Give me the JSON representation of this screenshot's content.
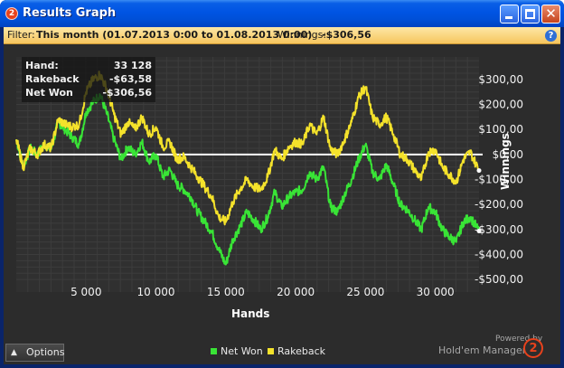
{
  "window": {
    "title": "Results Graph",
    "app_badge": "2",
    "controls": {
      "minimize": "minimize",
      "maximize": "maximize",
      "close": "✕"
    }
  },
  "filter": {
    "label": "Filter:",
    "value": "This month (01.07.2013 0:00 to 01.08.2013 0:00)",
    "winnings_label": "Winnings:",
    "winnings_value": "-$306,56",
    "help_glyph": "?"
  },
  "tooltip": {
    "rows": [
      {
        "key": "Hand:",
        "value": "33 128"
      },
      {
        "key": "Rakeback",
        "value": "-$63,58"
      },
      {
        "key": "Net Won",
        "value": "-$306,56"
      }
    ]
  },
  "chart_data": {
    "type": "line",
    "xlabel": "Hands",
    "ylabel": "Winnings",
    "xlim": [
      0,
      33128
    ],
    "ylim": [
      -550,
      390
    ],
    "x_ticks": [
      5000,
      10000,
      15000,
      20000,
      25000,
      30000
    ],
    "x_tick_labels": [
      "5 000",
      "10 000",
      "15 000",
      "20 000",
      "25 000",
      "30 000"
    ],
    "y_ticks": [
      300,
      200,
      100,
      0,
      -100,
      -200,
      -300,
      -400,
      -500
    ],
    "y_tick_labels": [
      "$300,00",
      "$200,00",
      "$100,00",
      "$0,00",
      "-$100,00",
      "-$200,00",
      "-$300,00",
      "-$400,00",
      "-$500,00"
    ],
    "grid": true,
    "legend_position": "bottom-center",
    "series": [
      {
        "name": "Net Won",
        "color": "#39e436",
        "x": [
          0,
          500,
          1000,
          1500,
          2000,
          2500,
          3000,
          3500,
          4000,
          4500,
          5000,
          5500,
          6000,
          6500,
          7000,
          7500,
          8000,
          8500,
          9000,
          9500,
          10000,
          10500,
          11000,
          11500,
          12000,
          12500,
          13000,
          13500,
          14000,
          14500,
          15000,
          15500,
          16000,
          16500,
          17000,
          17500,
          18000,
          18500,
          19000,
          19500,
          20000,
          20500,
          21000,
          21500,
          22000,
          22500,
          23000,
          23500,
          24000,
          24500,
          25000,
          25500,
          26000,
          26500,
          27000,
          27500,
          28000,
          28500,
          29000,
          29500,
          30000,
          30500,
          31000,
          31500,
          32000,
          32500,
          33128
        ],
        "values": [
          60,
          -50,
          25,
          0,
          40,
          20,
          130,
          100,
          70,
          40,
          170,
          210,
          240,
          160,
          60,
          -20,
          30,
          0,
          50,
          -30,
          0,
          -90,
          -60,
          -120,
          -140,
          -170,
          -230,
          -270,
          -310,
          -380,
          -440,
          -340,
          -290,
          -230,
          -260,
          -300,
          -250,
          -150,
          -210,
          -170,
          -150,
          -140,
          -70,
          -100,
          -50,
          -210,
          -230,
          -160,
          -100,
          -20,
          40,
          -70,
          -100,
          -40,
          -120,
          -200,
          -220,
          -260,
          -300,
          -210,
          -230,
          -300,
          -330,
          -350,
          -270,
          -250,
          -306
        ]
      },
      {
        "name": "Rakeback",
        "color": "#f4e22b",
        "x": [
          0,
          500,
          1000,
          1500,
          2000,
          2500,
          3000,
          3500,
          4000,
          4500,
          5000,
          5500,
          6000,
          6500,
          7000,
          7500,
          8000,
          8500,
          9000,
          9500,
          10000,
          10500,
          11000,
          11500,
          12000,
          12500,
          13000,
          13500,
          14000,
          14500,
          15000,
          15500,
          16000,
          16500,
          17000,
          17500,
          18000,
          18500,
          19000,
          19500,
          20000,
          20500,
          21000,
          21500,
          22000,
          22500,
          23000,
          23500,
          24000,
          24500,
          25000,
          25500,
          26000,
          26500,
          27000,
          27500,
          28000,
          28500,
          29000,
          29500,
          30000,
          30500,
          31000,
          31500,
          32000,
          32500,
          33128
        ],
        "values": [
          60,
          -50,
          25,
          0,
          40,
          25,
          140,
          120,
          110,
          120,
          250,
          300,
          320,
          260,
          160,
          80,
          130,
          100,
          150,
          80,
          110,
          30,
          50,
          -20,
          -10,
          -50,
          -90,
          -130,
          -170,
          -250,
          -270,
          -190,
          -140,
          -100,
          -130,
          -140,
          -90,
          20,
          -20,
          30,
          50,
          40,
          120,
          80,
          150,
          20,
          0,
          60,
          130,
          230,
          270,
          150,
          120,
          150,
          80,
          0,
          -20,
          -60,
          -100,
          10,
          20,
          -50,
          -80,
          -110,
          -20,
          10,
          -64
        ]
      }
    ]
  },
  "options_button": {
    "caret": "▲",
    "label": "Options"
  },
  "legend": {
    "items": [
      {
        "label": "Net Won",
        "color": "#39e436"
      },
      {
        "label": "Rakeback",
        "color": "#f4e22b"
      }
    ]
  },
  "branding": {
    "powered_by": "Powered by",
    "product": "Hold'em Manager",
    "logo_glyph": "2"
  }
}
